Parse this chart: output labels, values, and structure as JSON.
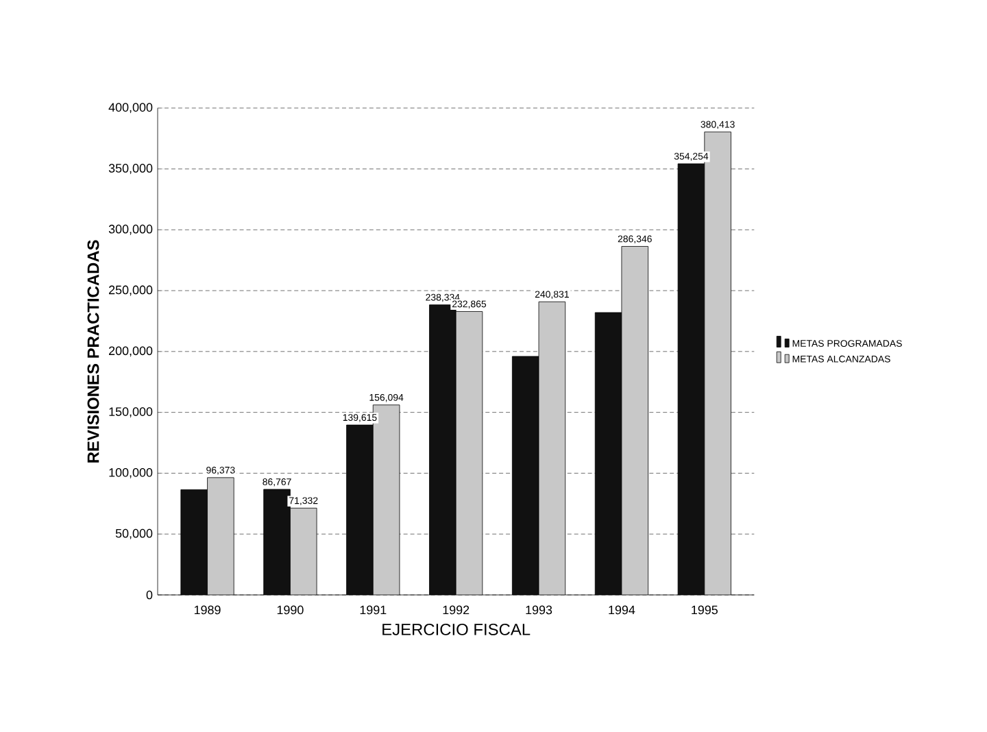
{
  "chart_data": {
    "type": "bar",
    "xlabel": "EJERCICIO FISCAL",
    "ylabel": "REVISIONES PRACTICADAS",
    "categories": [
      "1989",
      "1990",
      "1991",
      "1992",
      "1993",
      "1994",
      "1995"
    ],
    "series": [
      {
        "name": "METAS PROGRAMADAS",
        "color": "#111111",
        "values": [
          86500,
          86767,
          139615,
          238334,
          196000,
          232000,
          354254
        ],
        "value_labels": [
          null,
          "86,767",
          "139,615",
          "238,334",
          null,
          null,
          "354,254"
        ]
      },
      {
        "name": "METAS ALCANZADAS",
        "color": "#c8c8c8",
        "values": [
          96373,
          71332,
          156094,
          232865,
          240831,
          286346,
          380413
        ],
        "value_labels": [
          "96,373",
          "71,332",
          "156,094",
          "232,865",
          "240,831",
          "286,346",
          "380,413"
        ]
      }
    ],
    "ylim": [
      0,
      400000
    ],
    "yticks": [
      {
        "value": 0,
        "label": "0"
      },
      {
        "value": 50000,
        "label": "50,000"
      },
      {
        "value": 100000,
        "label": "100,000"
      },
      {
        "value": 150000,
        "label": "150,000"
      },
      {
        "value": 200000,
        "label": "200,000"
      },
      {
        "value": 250000,
        "label": "250,000"
      },
      {
        "value": 300000,
        "label": "300,000"
      },
      {
        "value": 350000,
        "label": "350,000"
      },
      {
        "value": 400000,
        "label": "400,000"
      }
    ],
    "grid": "y",
    "legend": "right"
  }
}
